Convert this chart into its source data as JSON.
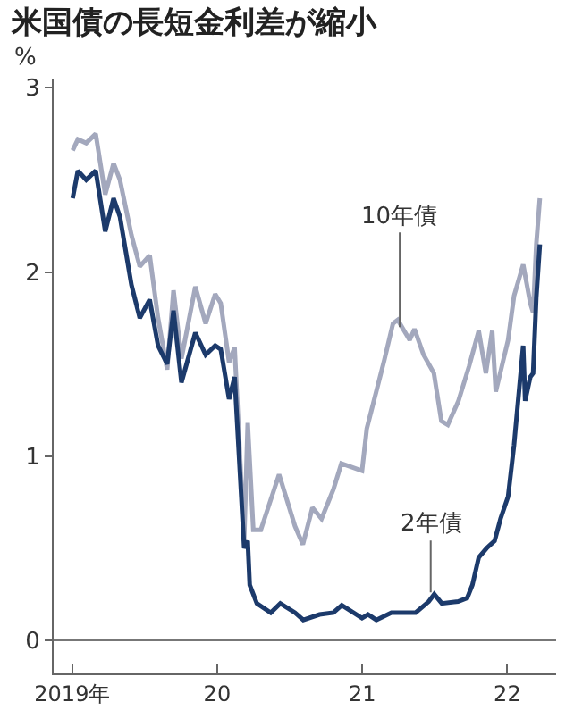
{
  "chart_data": {
    "type": "line",
    "title": "米国債の長短金利差が縮小",
    "ylabel": "%",
    "xlim": [
      "2018-11-15",
      "2022-05-04"
    ],
    "xticks": [
      {
        "value": "2019-01-01",
        "label": "2019年"
      },
      {
        "value": "2020-01-01",
        "label": "20"
      },
      {
        "value": "2021-01-01",
        "label": "21"
      },
      {
        "value": "2022-01-01",
        "label": "22"
      }
    ],
    "ylim": [
      -0.18,
      3.05
    ],
    "yticks": [
      0,
      1,
      2,
      3
    ],
    "grid": false,
    "ref_lines": [
      {
        "axis": "y",
        "value": 0,
        "color": "#777777"
      }
    ],
    "annotations": [
      {
        "text": "10年債",
        "x": "2021-04-05",
        "y": 1.7
      },
      {
        "text": "2年債",
        "x": "2021-06-22",
        "y": 0.26
      }
    ],
    "series": [
      {
        "color": "#a3a8bd",
        "x": [
          "2019-01-02",
          "2019-01-15",
          "2019-02-05",
          "2019-03-01",
          "2019-03-25",
          "2019-04-15",
          "2019-05-01",
          "2019-05-30",
          "2019-06-20",
          "2019-07-15",
          "2019-08-05",
          "2019-08-28",
          "2019-09-13",
          "2019-10-03",
          "2019-11-07",
          "2019-12-03",
          "2019-12-27",
          "2020-01-10",
          "2020-01-31",
          "2020-02-14",
          "2020-03-09",
          "2020-03-18",
          "2020-04-01",
          "2020-04-20",
          "2020-06-05",
          "2020-07-15",
          "2020-08-04",
          "2020-08-28",
          "2020-09-20",
          "2020-10-20",
          "2020-11-09",
          "2020-12-31",
          "2021-01-12",
          "2021-02-25",
          "2021-03-19",
          "2021-03-31",
          "2021-04-30",
          "2021-05-12",
          "2021-06-04",
          "2021-06-30",
          "2021-07-19",
          "2021-08-04",
          "2021-08-31",
          "2021-09-27",
          "2021-10-21",
          "2021-11-08",
          "2021-11-24",
          "2021-12-03",
          "2022-01-03",
          "2022-01-18",
          "2022-02-10",
          "2022-02-28",
          "2022-03-07",
          "2022-03-15",
          "2022-03-24"
        ],
        "values": [
          2.66,
          2.72,
          2.7,
          2.75,
          2.42,
          2.59,
          2.5,
          2.2,
          2.03,
          2.09,
          1.75,
          1.47,
          1.9,
          1.53,
          1.92,
          1.72,
          1.88,
          1.83,
          1.51,
          1.59,
          0.54,
          1.18,
          0.6,
          0.6,
          0.9,
          0.62,
          0.52,
          0.72,
          0.66,
          0.82,
          0.96,
          0.92,
          1.15,
          1.52,
          1.72,
          1.74,
          1.63,
          1.69,
          1.55,
          1.45,
          1.19,
          1.17,
          1.3,
          1.49,
          1.68,
          1.45,
          1.68,
          1.35,
          1.63,
          1.87,
          2.04,
          1.83,
          1.78,
          2.15,
          2.4
        ]
      },
      {
        "color": "#1c3a6b",
        "x": [
          "2019-01-02",
          "2019-01-15",
          "2019-02-05",
          "2019-03-01",
          "2019-03-25",
          "2019-04-15",
          "2019-05-01",
          "2019-05-30",
          "2019-06-20",
          "2019-07-15",
          "2019-08-05",
          "2019-08-28",
          "2019-09-13",
          "2019-10-03",
          "2019-11-07",
          "2019-12-03",
          "2019-12-27",
          "2020-01-10",
          "2020-01-31",
          "2020-02-14",
          "2020-03-09",
          "2020-03-18",
          "2020-03-23",
          "2020-04-10",
          "2020-05-15",
          "2020-06-08",
          "2020-07-15",
          "2020-08-05",
          "2020-09-15",
          "2020-10-20",
          "2020-11-10",
          "2020-12-31",
          "2021-01-15",
          "2021-02-05",
          "2021-03-15",
          "2021-05-15",
          "2021-06-17",
          "2021-07-01",
          "2021-07-20",
          "2021-08-30",
          "2021-09-22",
          "2021-10-05",
          "2021-10-21",
          "2021-11-10",
          "2021-11-30",
          "2021-12-15",
          "2022-01-03",
          "2022-01-18",
          "2022-02-10",
          "2022-02-15",
          "2022-02-28",
          "2022-03-07",
          "2022-03-15",
          "2022-03-24"
        ],
        "values": [
          2.4,
          2.55,
          2.5,
          2.55,
          2.22,
          2.4,
          2.3,
          1.93,
          1.75,
          1.85,
          1.6,
          1.5,
          1.79,
          1.4,
          1.67,
          1.55,
          1.6,
          1.58,
          1.31,
          1.43,
          0.5,
          0.54,
          0.3,
          0.2,
          0.15,
          0.2,
          0.15,
          0.11,
          0.14,
          0.15,
          0.19,
          0.12,
          0.14,
          0.11,
          0.15,
          0.15,
          0.21,
          0.25,
          0.2,
          0.21,
          0.23,
          0.3,
          0.45,
          0.5,
          0.54,
          0.66,
          0.78,
          1.06,
          1.6,
          1.3,
          1.43,
          1.45,
          1.86,
          2.15
        ]
      }
    ]
  }
}
